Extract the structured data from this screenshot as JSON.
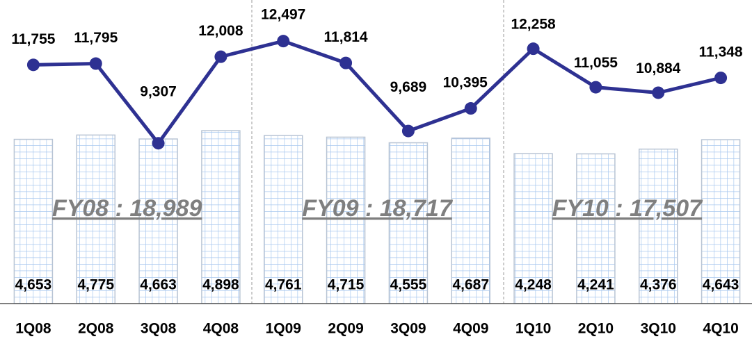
{
  "chart_data": {
    "type": "bar",
    "categories": [
      "1Q08",
      "2Q08",
      "3Q08",
      "4Q08",
      "1Q09",
      "2Q09",
      "3Q09",
      "4Q09",
      "1Q10",
      "2Q10",
      "3Q10",
      "4Q10"
    ],
    "series": [
      {
        "type": "bar",
        "color": "#a9c8ef",
        "values": [
          4653,
          4775,
          4663,
          4898,
          4761,
          4715,
          4555,
          4687,
          4248,
          4241,
          4376,
          4643
        ],
        "value_labels": [
          "4,653",
          "4,775",
          "4,663",
          "4,898",
          "4,761",
          "4,715",
          "4,555",
          "4,687",
          "4,248",
          "4,241",
          "4,376",
          "4,643"
        ]
      },
      {
        "type": "line",
        "axis": "y2",
        "color": "#2e3192",
        "values": [
          11755,
          11795,
          9307,
          12008,
          12497,
          11814,
          9689,
          10395,
          12258,
          11055,
          10884,
          11348
        ],
        "value_labels": [
          "11,755",
          "11,795",
          "9,307",
          "12,008",
          "12,497",
          "11,814",
          "9,689",
          "10,395",
          "12,258",
          "11,055",
          "10,884",
          "11,348"
        ]
      }
    ],
    "annotations": [
      "FY08 : 18,989",
      "FY09 : 18,717",
      "FY10 : 17,507"
    ],
    "ylim": [
      0,
      8600
    ],
    "y2lim": [
      4300,
      13780
    ]
  }
}
